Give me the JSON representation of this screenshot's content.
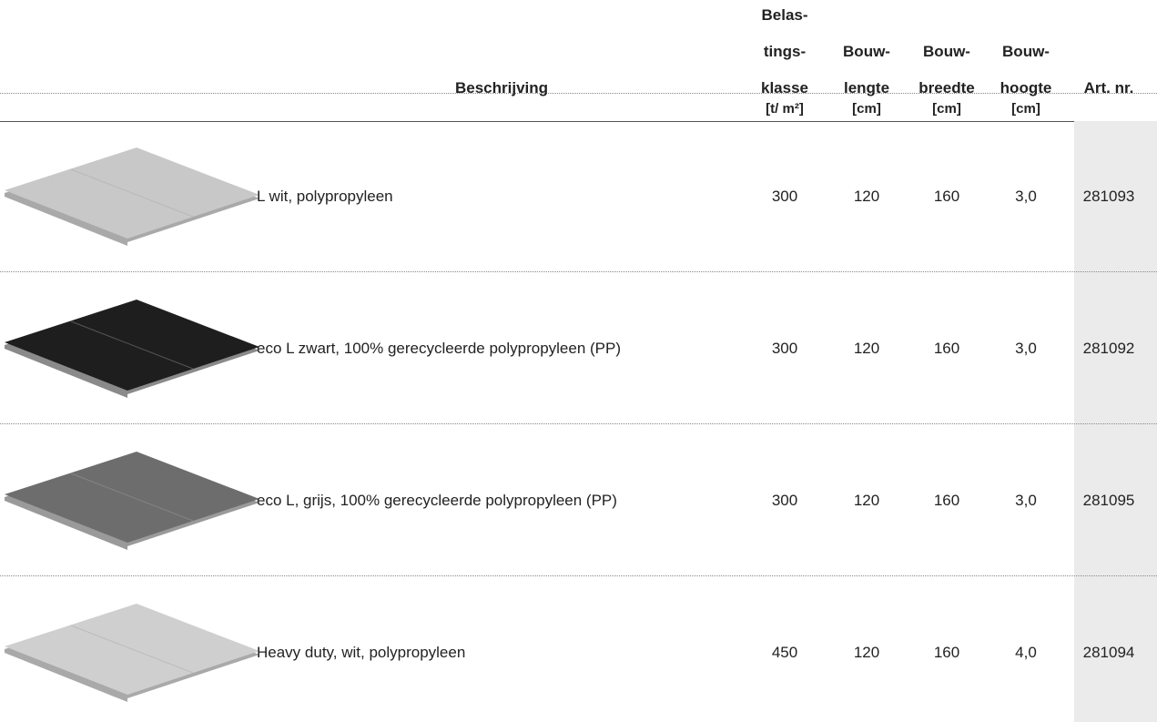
{
  "header": {
    "columns": [
      {
        "lines": [
          "Beschrijving"
        ]
      },
      {
        "lines": [
          "Belas-",
          "tings-",
          "klasse"
        ],
        "unit": "[t/ m²]"
      },
      {
        "lines": [
          "Bouw-",
          "lengte"
        ],
        "unit": "[cm]"
      },
      {
        "lines": [
          "Bouw-",
          "breedte"
        ],
        "unit": "[cm]"
      },
      {
        "lines": [
          "Bouw-",
          "hoogte"
        ],
        "unit": "[cm]"
      },
      {
        "lines": [
          "Art. nr."
        ]
      }
    ]
  },
  "rows": [
    [
      "L wit, polypropyleen",
      "300",
      "120",
      "160",
      "3,0",
      "281093"
    ],
    [
      "eco L zwart, 100% gerecycleerde polypropyleen (PP)",
      "300",
      "120",
      "160",
      "3,0",
      "281092"
    ],
    [
      "eco L, grijs, 100% gerecycleerde polypropyleen (PP)",
      "300",
      "120",
      "160",
      "3,0",
      "281095"
    ],
    [
      "Heavy duty, wit, polypropyleen",
      "450",
      "120",
      "160",
      "4,0",
      "281094"
    ]
  ]
}
